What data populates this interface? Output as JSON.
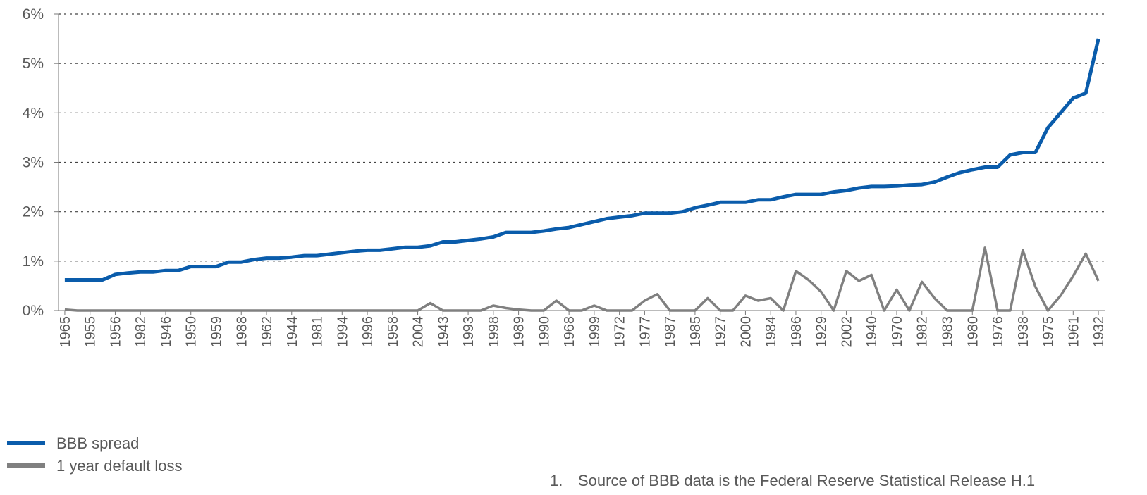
{
  "chart_data": {
    "type": "line",
    "categories": [
      "1965",
      null,
      "1955",
      null,
      "1956",
      null,
      "1982",
      null,
      "1946",
      null,
      "1950",
      null,
      "1959",
      null,
      "1988",
      null,
      "1962",
      null,
      "1944",
      null,
      "1981",
      null,
      "1994",
      null,
      "1996",
      null,
      "1958",
      null,
      "2004",
      null,
      "1943",
      null,
      "1993",
      null,
      "1998",
      null,
      "1989",
      null,
      "1990",
      null,
      "1968",
      null,
      "1999",
      null,
      "1972",
      null,
      "1977",
      null,
      "1987",
      null,
      "1985",
      null,
      "1927",
      null,
      "2000",
      null,
      "1984",
      null,
      "1986",
      null,
      "1929",
      null,
      "2002",
      null,
      "1940",
      null,
      "1970",
      null,
      "1982",
      null,
      "1983",
      null,
      "1980",
      null,
      "1976",
      null,
      "1938",
      null,
      "1975",
      null,
      "1961",
      null,
      "1932"
    ],
    "series": [
      {
        "name": "BBB spread",
        "color": "#0a5cab",
        "values": [
          0.62,
          0.62,
          0.62,
          0.62,
          0.73,
          0.76,
          0.78,
          0.78,
          0.81,
          0.81,
          0.89,
          0.89,
          0.89,
          0.98,
          0.98,
          1.03,
          1.06,
          1.06,
          1.08,
          1.11,
          1.11,
          1.14,
          1.17,
          1.2,
          1.22,
          1.22,
          1.25,
          1.28,
          1.28,
          1.31,
          1.39,
          1.39,
          1.42,
          1.45,
          1.49,
          1.58,
          1.58,
          1.58,
          1.61,
          1.65,
          1.68,
          1.74,
          1.8,
          1.86,
          1.89,
          1.92,
          1.97,
          1.97,
          1.97,
          2.0,
          2.08,
          2.13,
          2.19,
          2.19,
          2.19,
          2.24,
          2.24,
          2.3,
          2.35,
          2.35,
          2.35,
          2.4,
          2.43,
          2.48,
          2.51,
          2.51,
          2.52,
          2.54,
          2.55,
          2.6,
          2.7,
          2.79,
          2.85,
          2.9,
          2.9,
          3.15,
          3.2,
          3.2,
          3.7,
          4.0,
          4.3,
          4.4,
          5.5
        ]
      },
      {
        "name": "1 year default loss",
        "color": "#808080",
        "values": [
          0.02,
          0,
          0,
          0,
          0,
          0,
          0,
          0,
          0,
          0,
          0,
          0,
          0,
          0,
          0,
          0,
          0,
          0,
          0,
          0,
          0,
          0,
          0,
          0,
          0,
          0,
          0,
          0,
          0,
          0.15,
          0,
          0,
          0,
          0,
          0.1,
          0.05,
          0.02,
          0,
          0,
          0.2,
          0,
          0,
          0.1,
          0,
          0,
          0,
          0.2,
          0.33,
          0,
          0,
          0,
          0.25,
          0,
          0,
          0.3,
          0.2,
          0.25,
          0,
          0.8,
          0.62,
          0.38,
          0,
          0.8,
          0.6,
          0.72,
          0,
          0.42,
          0,
          0.58,
          0.25,
          0,
          0,
          0,
          1.27,
          0,
          0,
          1.22,
          0.48,
          0,
          0.3,
          0.7,
          1.15,
          0.6
        ]
      }
    ],
    "ylim": [
      0,
      6
    ],
    "yticks": [
      {
        "value": 0,
        "label": "0%"
      },
      {
        "value": 1,
        "label": "1%"
      },
      {
        "value": 2,
        "label": "2%"
      },
      {
        "value": 3,
        "label": "3%"
      },
      {
        "value": 4,
        "label": "4%"
      },
      {
        "value": 5,
        "label": "5%"
      },
      {
        "value": 6,
        "label": "6%"
      }
    ],
    "grid": true,
    "legend": "bottom-left",
    "footnote_number": "1.",
    "footnote": "Source of BBB data is the Federal Reserve Statistical Release H.1"
  }
}
